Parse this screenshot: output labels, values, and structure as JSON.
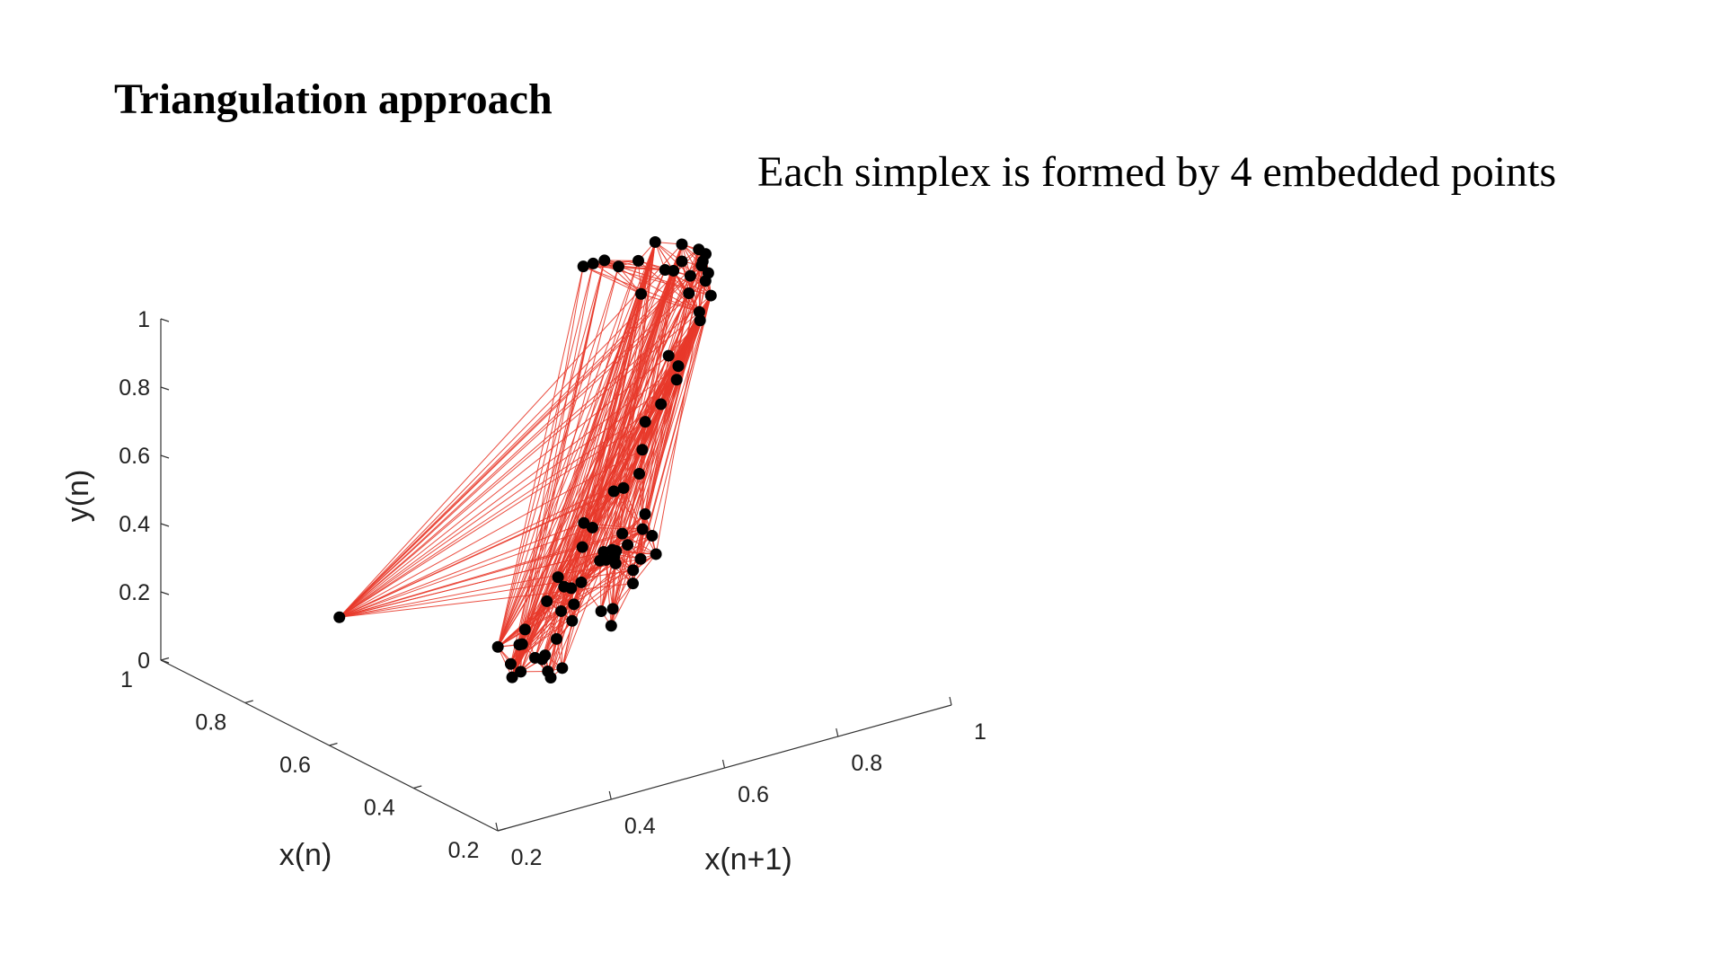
{
  "slide": {
    "title": "Triangulation approach",
    "subtitle": "Each simplex is formed by 4 embedded points"
  },
  "chart_data": {
    "type": "scatter",
    "projection": "3d",
    "title": "",
    "xlabel": "x(n)",
    "ylabel": "x(n+1)",
    "zlabel": "y(n)",
    "xlim": [
      0.2,
      1
    ],
    "ylim": [
      0.2,
      1
    ],
    "zlim": [
      0,
      1
    ],
    "xticks": [
      "0.2",
      "0.4",
      "0.6",
      "0.8",
      "1"
    ],
    "yticks": [
      "0.2",
      "0.4",
      "0.6",
      "0.8",
      "1"
    ],
    "zticks": [
      "0",
      "0.2",
      "0.4",
      "0.6",
      "0.8",
      "1"
    ],
    "grid": false,
    "colors": {
      "points": "#000000",
      "edges": "#e8392a",
      "axes": "#333333"
    },
    "series": [
      {
        "marker": "filled-circle",
        "points": [
          [
            0.61,
            0.86,
            0.96
          ],
          [
            0.65,
            0.91,
            0.96
          ],
          [
            0.71,
            0.95,
            0.97
          ],
          [
            0.75,
            0.97,
            0.97
          ],
          [
            0.77,
            0.99,
            0.97
          ],
          [
            0.8,
            1.0,
            0.96
          ],
          [
            0.84,
            1.0,
            0.95
          ],
          [
            0.89,
            0.99,
            0.93
          ],
          [
            0.73,
            0.96,
            0.93
          ],
          [
            0.78,
            0.99,
            0.93
          ],
          [
            0.84,
            1.0,
            0.9
          ],
          [
            0.93,
            0.99,
            0.85
          ],
          [
            0.95,
            0.97,
            0.83
          ],
          [
            0.97,
            0.96,
            0.84
          ],
          [
            0.97,
            0.94,
            0.84
          ],
          [
            0.98,
            0.93,
            0.83
          ],
          [
            0.88,
            1.0,
            0.85
          ],
          [
            0.86,
            1.0,
            0.86
          ],
          [
            0.82,
            1.0,
            0.87
          ],
          [
            0.81,
            0.99,
            0.83
          ],
          [
            0.77,
            0.98,
            0.78
          ],
          [
            0.91,
            0.98,
            0.77
          ],
          [
            0.71,
            0.88,
            0.76
          ],
          [
            0.66,
            0.86,
            0.77
          ],
          [
            0.61,
            0.82,
            0.78
          ],
          [
            0.58,
            0.77,
            0.75
          ],
          [
            0.55,
            0.72,
            0.74
          ],
          [
            0.98,
            0.5,
            0.0
          ],
          [
            0.44,
            0.6,
            0.67
          ],
          [
            0.47,
            0.65,
            0.67
          ],
          [
            0.53,
            0.7,
            0.68
          ],
          [
            0.49,
            0.62,
            0.62
          ],
          [
            0.44,
            0.53,
            0.6
          ],
          [
            0.46,
            0.56,
            0.56
          ],
          [
            0.43,
            0.52,
            0.54
          ],
          [
            0.38,
            0.44,
            0.52
          ],
          [
            0.24,
            0.23,
            0.5
          ],
          [
            0.27,
            0.3,
            0.5
          ],
          [
            0.27,
            0.29,
            0.46
          ],
          [
            0.29,
            0.31,
            0.44
          ],
          [
            0.46,
            0.51,
            0.41
          ],
          [
            0.47,
            0.53,
            0.39
          ],
          [
            0.42,
            0.45,
            0.42
          ],
          [
            0.36,
            0.45,
            0.4
          ],
          [
            0.44,
            0.49,
            0.36
          ],
          [
            0.52,
            0.62,
            0.25
          ],
          [
            0.25,
            0.26,
            0.43
          ],
          [
            0.26,
            0.27,
            0.38
          ],
          [
            0.28,
            0.3,
            0.37
          ],
          [
            0.3,
            0.34,
            0.38
          ],
          [
            0.33,
            0.38,
            0.35
          ],
          [
            0.37,
            0.43,
            0.35
          ],
          [
            0.45,
            0.52,
            0.36
          ],
          [
            0.5,
            0.57,
            0.37
          ],
          [
            0.55,
            0.64,
            0.37
          ],
          [
            0.57,
            0.68,
            0.35
          ],
          [
            0.58,
            0.69,
            0.32
          ],
          [
            0.63,
            0.71,
            0.29
          ],
          [
            0.7,
            0.78,
            0.24
          ],
          [
            0.77,
            0.81,
            0.18
          ],
          [
            0.79,
            0.84,
            0.16
          ],
          [
            0.74,
            0.83,
            0.21
          ],
          [
            0.82,
            0.88,
            0.17
          ],
          [
            0.86,
            0.95,
            0.17
          ],
          [
            0.31,
            0.36,
            0.36
          ],
          [
            0.31,
            0.37,
            0.32
          ],
          [
            0.33,
            0.39,
            0.28
          ],
          [
            0.37,
            0.44,
            0.26
          ],
          [
            0.55,
            0.66,
            0.17
          ],
          [
            0.6,
            0.7,
            0.17
          ],
          [
            0.66,
            0.78,
            0.17
          ],
          [
            0.7,
            0.81,
            0.17
          ],
          [
            0.79,
            0.89,
            0.11
          ],
          [
            0.74,
            0.88,
            0.16
          ],
          [
            0.83,
            0.94,
            0.13
          ],
          [
            0.92,
            0.99,
            0.07
          ]
        ]
      }
    ],
    "triangulation": "Delaunay tetrahedra (4 points per simplex), drawn as edges"
  }
}
